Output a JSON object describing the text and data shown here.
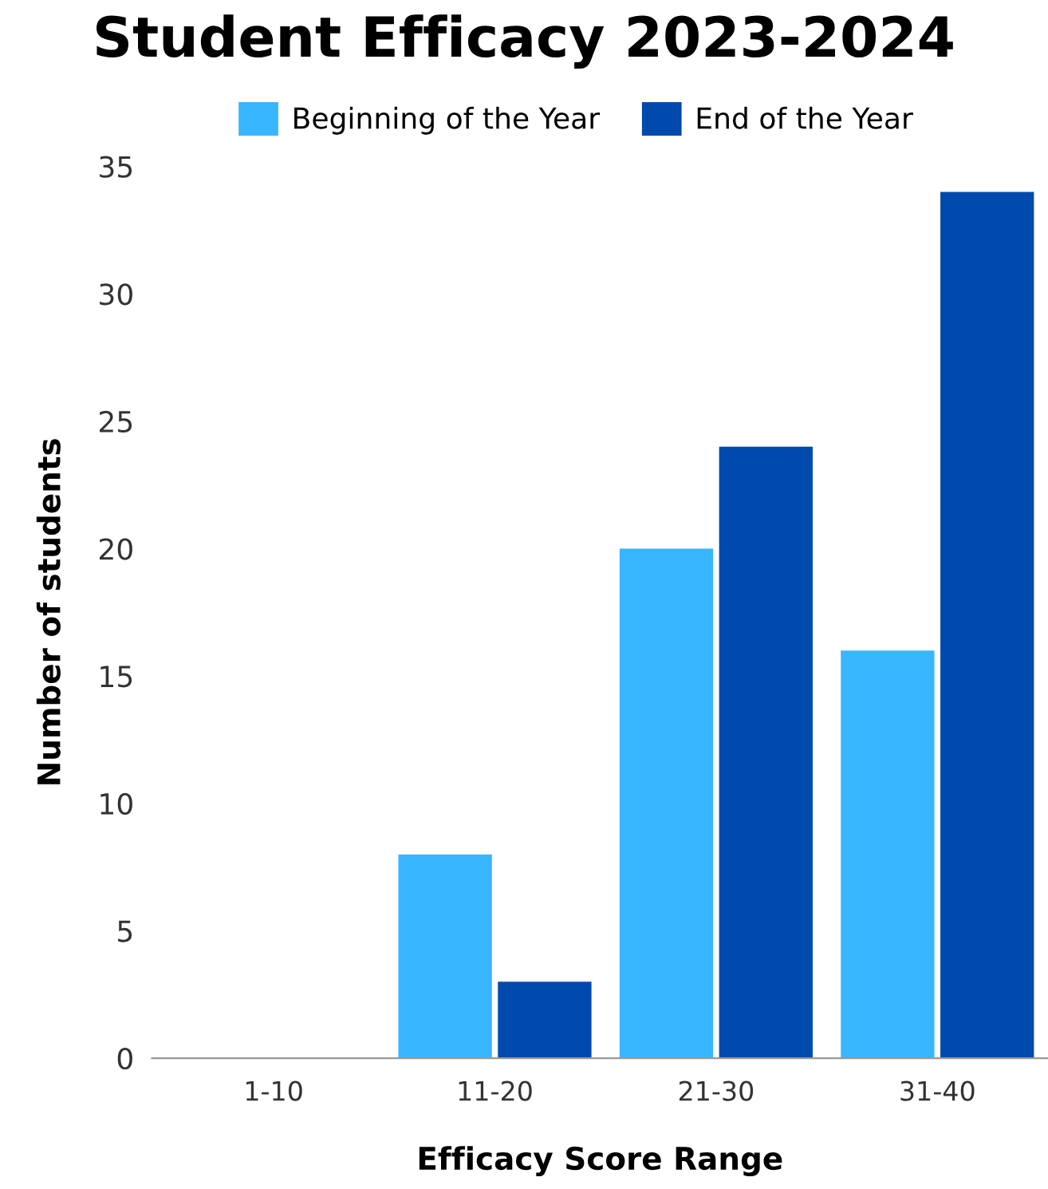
{
  "chart_data": {
    "type": "bar",
    "title": "Student Efficacy 2023-2024",
    "xlabel": "Efficacy Score Range",
    "ylabel": "Number of students",
    "categories": [
      "1-10",
      "11-20",
      "21-30",
      "31-40"
    ],
    "series": [
      {
        "name": "Beginning of the Year",
        "color": "#38b6ff",
        "values": [
          0,
          8,
          20,
          16
        ]
      },
      {
        "name": "End of the Year",
        "color": "#004aad",
        "values": [
          0,
          3,
          24,
          34
        ]
      }
    ],
    "ylim": [
      0,
      35
    ],
    "yticks": [
      0,
      5,
      10,
      15,
      20,
      25,
      30,
      35
    ],
    "grid": false,
    "legend": "top"
  }
}
